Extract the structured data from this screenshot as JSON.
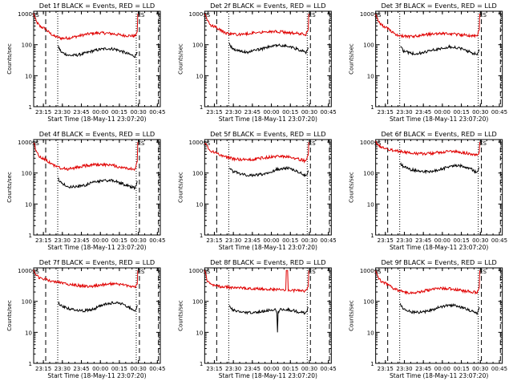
{
  "layout": {
    "rows": 3,
    "cols": 3
  },
  "colors": {
    "events": "#000000",
    "lld": "#e00000",
    "axes": "#000000",
    "background": "#ffffff"
  },
  "xlabel": "Start Time (18-May-11 23:07:20)",
  "ylabel": "Counts/sec",
  "x_tick_labels": [
    "23:15",
    "23:30",
    "23:45",
    "00:00",
    "00:15",
    "00:30",
    "00:45"
  ],
  "y_tick_labels": [
    "1",
    "10",
    "100",
    "1000"
  ],
  "x_range_minutes": [
    0,
    100
  ],
  "x_tick_minutes": [
    7.67,
    22.67,
    37.67,
    52.67,
    67.67,
    82.67,
    97.67
  ],
  "y_range": [
    1,
    1200
  ],
  "y_scale": "log",
  "marker_text": {
    "start": "SS",
    "end": "ES"
  },
  "chart_data": [
    {
      "type": "line",
      "title": "Det 1f BLACK = Events, RED = LLD",
      "markers": {
        "dashed": [
          9.5,
          83.5,
          98.5
        ],
        "dotted": [
          19.0,
          81.0
        ],
        "ss": 1.5,
        "es": 82.2
      },
      "series": [
        {
          "x": [
            0,
            2,
            5,
            9,
            12,
            16,
            22,
            28,
            34,
            40,
            46,
            52,
            58,
            64,
            70,
            76,
            80,
            81.8,
            82.2
          ],
          "values": [
            1000,
            560,
            390,
            330,
            250,
            190,
            160,
            165,
            185,
            210,
            230,
            240,
            235,
            220,
            200,
            195,
            190,
            260,
            1000
          ]
        },
        {
          "x": [
            19.5,
            22,
            28,
            34,
            40,
            46,
            52,
            58,
            64,
            70,
            76,
            80,
            81.8
          ],
          "values": [
            85,
            56,
            45,
            46,
            52,
            62,
            70,
            75,
            72,
            60,
            48,
            42,
            58
          ]
        }
      ]
    },
    {
      "type": "line",
      "title": "Det 2f BLACK = Events, RED = LLD",
      "markers": {
        "dashed": [
          9.5,
          83.5,
          98.5
        ],
        "dotted": [
          19.0,
          81.0
        ],
        "ss": 1.5,
        "es": 82.2
      },
      "series": [
        {
          "x": [
            0,
            2,
            5,
            9,
            12,
            16,
            22,
            28,
            34,
            40,
            46,
            52,
            58,
            64,
            70,
            76,
            80,
            81.8,
            82.2
          ],
          "values": [
            1000,
            620,
            430,
            360,
            300,
            240,
            215,
            210,
            225,
            245,
            260,
            270,
            265,
            250,
            235,
            225,
            215,
            330,
            1000
          ]
        },
        {
          "x": [
            19.5,
            22,
            28,
            34,
            40,
            46,
            52,
            58,
            64,
            70,
            76,
            80,
            81.8
          ],
          "values": [
            105,
            75,
            60,
            58,
            65,
            75,
            88,
            95,
            92,
            80,
            65,
            55,
            80
          ]
        }
      ]
    },
    {
      "type": "line",
      "title": "Det 3f BLACK = Events, RED = LLD",
      "markers": {
        "dashed": [
          9.5,
          83.5,
          98.5
        ],
        "dotted": [
          19.0,
          81.0
        ],
        "ss": 1.5,
        "es": 82.2
      },
      "series": [
        {
          "x": [
            0,
            2,
            5,
            9,
            12,
            16,
            22,
            28,
            34,
            40,
            46,
            52,
            58,
            64,
            70,
            76,
            80,
            81.8,
            82.2
          ],
          "values": [
            1000,
            600,
            420,
            340,
            270,
            215,
            185,
            180,
            195,
            210,
            225,
            230,
            225,
            215,
            205,
            195,
            185,
            300,
            1000
          ]
        },
        {
          "x": [
            19.5,
            22,
            28,
            34,
            40,
            46,
            52,
            58,
            64,
            70,
            76,
            80,
            81.8
          ],
          "values": [
            90,
            62,
            52,
            52,
            58,
            68,
            78,
            85,
            80,
            68,
            55,
            48,
            70
          ]
        }
      ]
    },
    {
      "type": "line",
      "title": "Det 4f BLACK = Events, RED = LLD",
      "markers": {
        "dashed": [
          9.5,
          83.5,
          98.5
        ],
        "dotted": [
          19.0,
          81.0
        ],
        "ss": 1.5,
        "es": 82.2
      },
      "series": [
        {
          "x": [
            0,
            2,
            5,
            9,
            12,
            16,
            22,
            28,
            34,
            40,
            46,
            52,
            58,
            64,
            70,
            76,
            80,
            81.8,
            82.2
          ],
          "values": [
            1000,
            480,
            330,
            280,
            230,
            175,
            140,
            135,
            150,
            170,
            185,
            190,
            185,
            170,
            150,
            140,
            135,
            230,
            1000
          ]
        },
        {
          "x": [
            19.5,
            22,
            28,
            34,
            40,
            46,
            52,
            58,
            64,
            70,
            76,
            80,
            81.8
          ],
          "values": [
            65,
            45,
            36,
            36,
            40,
            48,
            55,
            58,
            55,
            45,
            37,
            33,
            55
          ]
        }
      ]
    },
    {
      "type": "line",
      "title": "Det 5f BLACK = Events, RED = LLD",
      "markers": {
        "dashed": [
          9.5,
          83.5,
          98.5
        ],
        "dotted": [
          19.0,
          81.0
        ],
        "ss": 1.5,
        "es": 82.2
      },
      "series": [
        {
          "x": [
            0,
            2,
            5,
            9,
            12,
            16,
            22,
            28,
            34,
            40,
            46,
            52,
            58,
            64,
            70,
            76,
            80,
            81.8,
            82.2
          ],
          "values": [
            1000,
            700,
            520,
            430,
            380,
            330,
            290,
            270,
            270,
            285,
            305,
            330,
            345,
            340,
            310,
            270,
            240,
            380,
            1000
          ]
        },
        {
          "x": [
            19.5,
            22,
            28,
            34,
            40,
            46,
            52,
            58,
            64,
            70,
            76,
            80,
            81.8
          ],
          "values": [
            150,
            115,
            95,
            85,
            85,
            92,
            110,
            135,
            145,
            130,
            100,
            80,
            120
          ]
        }
      ]
    },
    {
      "type": "line",
      "title": "Det 6f BLACK = Events, RED = LLD",
      "markers": {
        "dashed": [
          9.5,
          83.5,
          98.5
        ],
        "dotted": [
          19.0,
          81.0
        ],
        "ss": 1.5,
        "es": 82.2
      },
      "series": [
        {
          "x": [
            0,
            2,
            5,
            9,
            12,
            16,
            22,
            28,
            34,
            40,
            46,
            52,
            58,
            64,
            70,
            76,
            80,
            81.8,
            82.2
          ],
          "values": [
            1000,
            780,
            650,
            600,
            560,
            520,
            480,
            440,
            420,
            420,
            440,
            470,
            490,
            480,
            450,
            410,
            380,
            480,
            1000
          ]
        },
        {
          "x": [
            19.5,
            22,
            28,
            34,
            40,
            46,
            52,
            58,
            64,
            70,
            76,
            80,
            81.8
          ],
          "values": [
            200,
            160,
            130,
            115,
            110,
            115,
            135,
            160,
            175,
            165,
            130,
            100,
            150
          ]
        }
      ]
    },
    {
      "type": "line",
      "title": "Det 7f BLACK = Events, RED = LLD",
      "markers": {
        "dashed": [
          9.5,
          83.5,
          98.5
        ],
        "dotted": [
          19.0,
          81.0
        ],
        "ss": 1.5,
        "es": 82.2
      },
      "series": [
        {
          "x": [
            0,
            2,
            5,
            9,
            12,
            16,
            22,
            28,
            34,
            40,
            46,
            52,
            58,
            64,
            70,
            76,
            80,
            81.8,
            82.2
          ],
          "values": [
            1000,
            700,
            560,
            520,
            480,
            440,
            400,
            360,
            330,
            310,
            310,
            330,
            360,
            370,
            350,
            310,
            280,
            360,
            1000
          ]
        },
        {
          "x": [
            19.5,
            22,
            28,
            34,
            40,
            46,
            52,
            58,
            64,
            70,
            76,
            80,
            81.8
          ],
          "values": [
            90,
            70,
            58,
            52,
            50,
            55,
            68,
            85,
            92,
            82,
            62,
            50,
            75
          ]
        }
      ]
    },
    {
      "type": "line",
      "title": "Det 8f BLACK = Events, RED = LLD",
      "markers": {
        "dashed": [
          9.5,
          83.5,
          98.5
        ],
        "dotted": [
          19.0,
          81.0
        ],
        "ss": 1.5,
        "es": 82.2
      },
      "series": [
        {
          "x": [
            0,
            2,
            5,
            9,
            12,
            16,
            22,
            28,
            34,
            40,
            46,
            52,
            58,
            62,
            64,
            64.5,
            65,
            65.5,
            66,
            70,
            76,
            80,
            81.8,
            82.2
          ],
          "values": [
            1000,
            460,
            360,
            330,
            300,
            290,
            280,
            270,
            260,
            255,
            250,
            245,
            240,
            235,
            230,
            1000,
            1000,
            1000,
            230,
            225,
            220,
            215,
            300,
            1000
          ]
        },
        {
          "x": [
            19.5,
            22,
            28,
            34,
            40,
            46,
            52,
            56,
            57,
            57.5,
            58,
            60,
            64,
            70,
            76,
            80,
            81.8
          ],
          "values": [
            75,
            52,
            46,
            44,
            45,
            48,
            52,
            54,
            42,
            10,
            45,
            55,
            55,
            50,
            44,
            42,
            65
          ]
        }
      ]
    },
    {
      "type": "line",
      "title": "Det 9f BLACK = Events, RED = LLD",
      "markers": {
        "dashed": [
          9.5,
          83.5,
          98.5
        ],
        "dotted": [
          19.0,
          81.0
        ],
        "ss": 1.5,
        "es": 82.2
      },
      "series": [
        {
          "x": [
            0,
            2,
            5,
            9,
            12,
            16,
            22,
            28,
            34,
            40,
            46,
            52,
            58,
            64,
            70,
            76,
            80,
            81.8,
            82.2
          ],
          "values": [
            1000,
            580,
            420,
            360,
            300,
            240,
            200,
            190,
            200,
            225,
            250,
            260,
            255,
            240,
            215,
            200,
            190,
            280,
            1000
          ]
        },
        {
          "x": [
            19.5,
            22,
            28,
            34,
            40,
            46,
            52,
            58,
            64,
            70,
            76,
            80,
            81.8
          ],
          "values": [
            80,
            58,
            46,
            44,
            48,
            56,
            68,
            75,
            72,
            60,
            48,
            42,
            65
          ]
        }
      ]
    }
  ]
}
